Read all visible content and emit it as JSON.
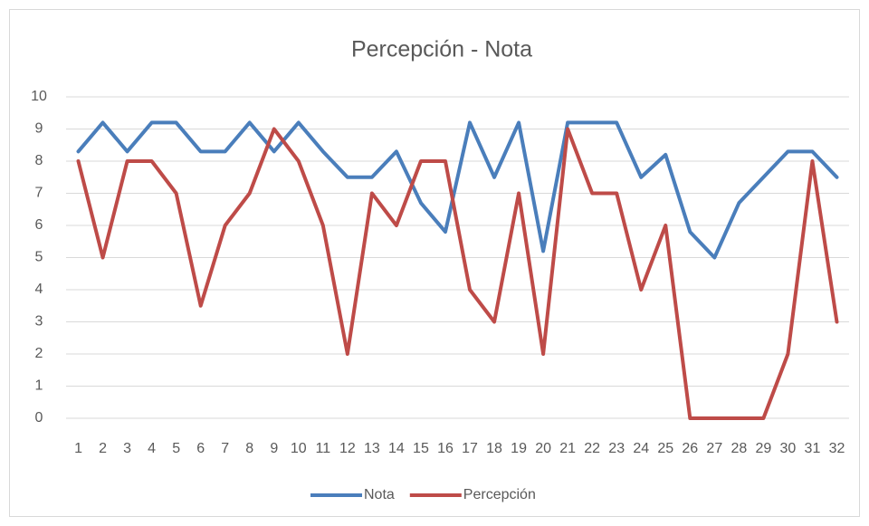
{
  "chart_data": {
    "type": "line",
    "title": "Percepción - Nota",
    "categories": [
      "1",
      "2",
      "3",
      "4",
      "5",
      "6",
      "7",
      "8",
      "9",
      "10",
      "11",
      "12",
      "13",
      "14",
      "15",
      "16",
      "17",
      "18",
      "19",
      "20",
      "21",
      "22",
      "23",
      "24",
      "25",
      "26",
      "27",
      "28",
      "29",
      "30",
      "31",
      "32"
    ],
    "series": [
      {
        "name": "Nota",
        "color": "#4a7ebb",
        "values": [
          8.3,
          9.2,
          8.3,
          9.2,
          9.2,
          8.3,
          8.3,
          9.2,
          8.3,
          9.2,
          8.3,
          7.5,
          7.5,
          8.3,
          6.7,
          5.8,
          9.2,
          7.5,
          9.2,
          5.2,
          9.2,
          9.2,
          9.2,
          7.5,
          8.2,
          5.8,
          5.0,
          6.7,
          7.5,
          8.3,
          8.3,
          7.5
        ]
      },
      {
        "name": "Percepción",
        "color": "#be4b48",
        "values": [
          8,
          5,
          8,
          8,
          7,
          3.5,
          6,
          7,
          9,
          8,
          6,
          2,
          7,
          6,
          8,
          8,
          4,
          3,
          7,
          2,
          9,
          7,
          7,
          4,
          6,
          0,
          0,
          0,
          0,
          2,
          8,
          3
        ]
      }
    ],
    "ylim": [
      0,
      10
    ],
    "yticks": [
      0,
      1,
      2,
      3,
      4,
      5,
      6,
      7,
      8,
      9,
      10
    ],
    "grid": true,
    "legend": "bottom"
  }
}
